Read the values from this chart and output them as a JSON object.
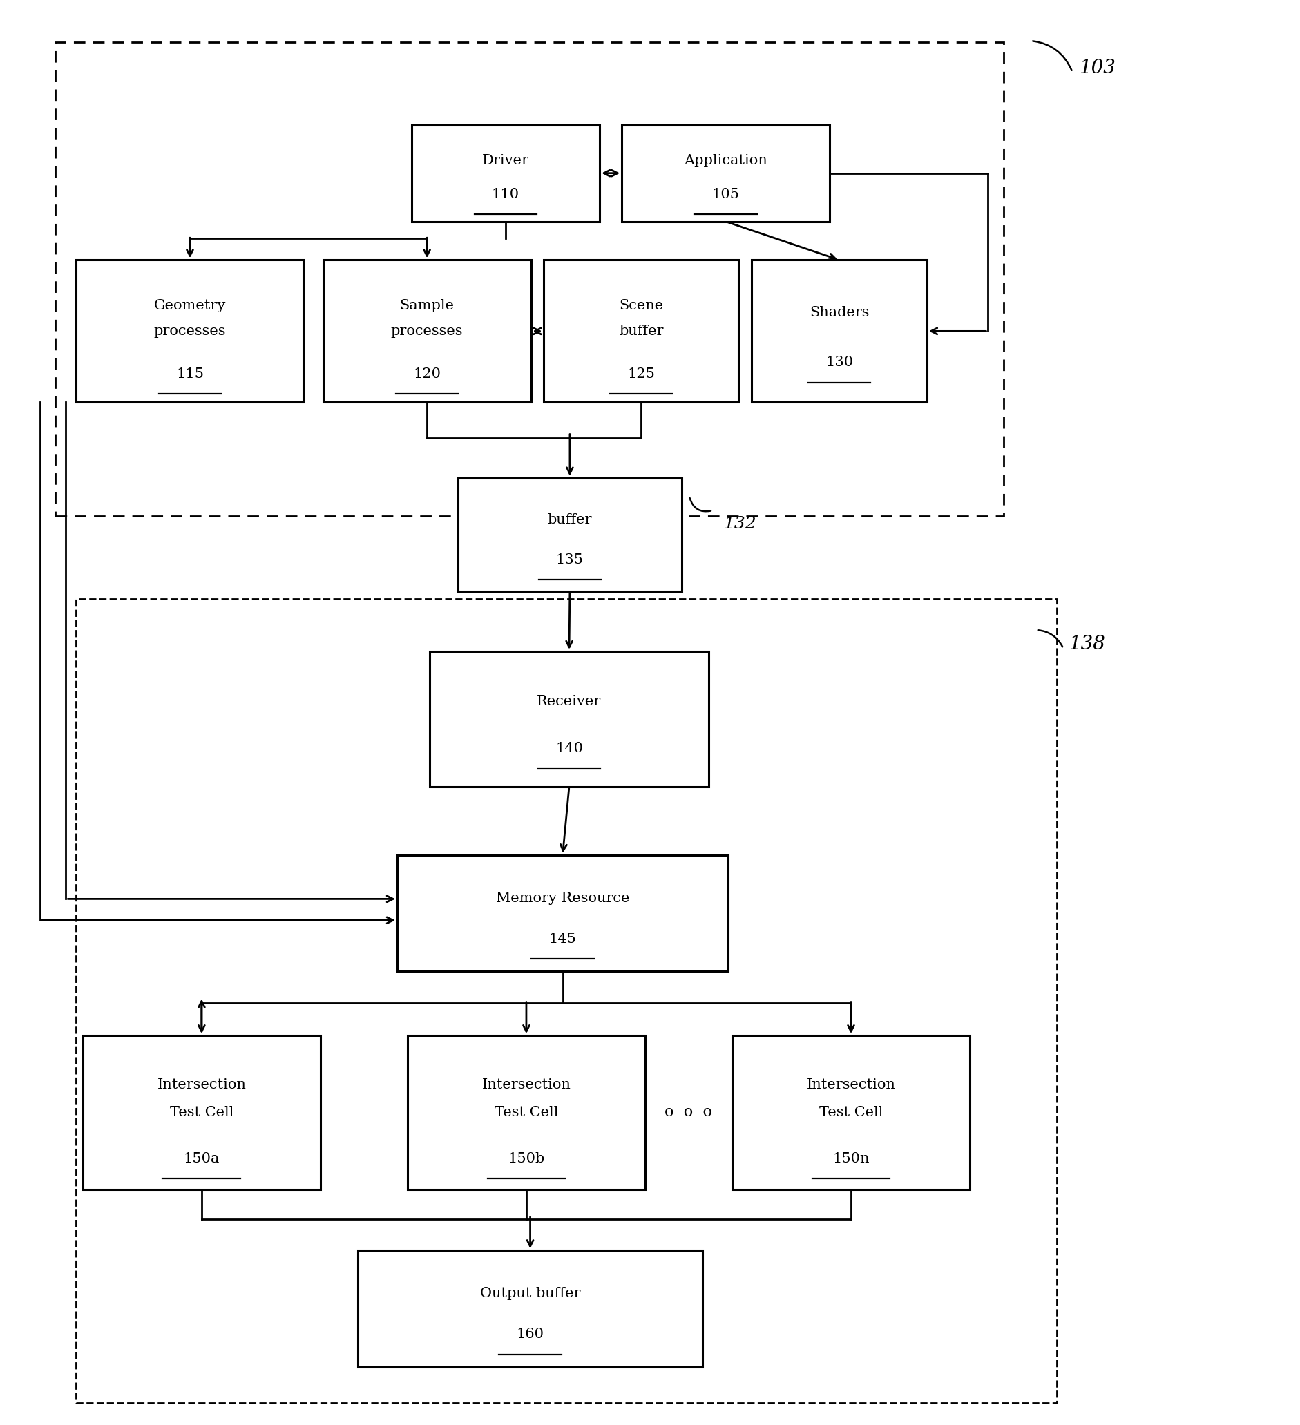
{
  "bg_color": "#ffffff",
  "fig_width": 18.83,
  "fig_height": 20.63,
  "box_defs": [
    {
      "id": "driver",
      "bx": 0.316,
      "by": 0.845,
      "bw": 0.145,
      "bh": 0.068,
      "lines": [
        "Driver"
      ],
      "number": "110"
    },
    {
      "id": "application",
      "bx": 0.478,
      "by": 0.845,
      "bw": 0.16,
      "bh": 0.068,
      "lines": [
        "Application"
      ],
      "number": "105"
    },
    {
      "id": "geom",
      "bx": 0.058,
      "by": 0.718,
      "bw": 0.175,
      "bh": 0.1,
      "lines": [
        "Geometry",
        "processes"
      ],
      "number": "115"
    },
    {
      "id": "sample",
      "bx": 0.248,
      "by": 0.718,
      "bw": 0.16,
      "bh": 0.1,
      "lines": [
        "Sample",
        "processes"
      ],
      "number": "120"
    },
    {
      "id": "scene",
      "bx": 0.418,
      "by": 0.718,
      "bw": 0.15,
      "bh": 0.1,
      "lines": [
        "Scene",
        "buffer"
      ],
      "number": "125"
    },
    {
      "id": "shaders",
      "bx": 0.578,
      "by": 0.718,
      "bw": 0.135,
      "bh": 0.1,
      "lines": [
        "Shaders"
      ],
      "number": "130"
    },
    {
      "id": "buffer",
      "bx": 0.352,
      "by": 0.585,
      "bw": 0.172,
      "bh": 0.08,
      "lines": [
        "buffer"
      ],
      "number": "135"
    },
    {
      "id": "receiver",
      "bx": 0.33,
      "by": 0.448,
      "bw": 0.215,
      "bh": 0.095,
      "lines": [
        "Receiver"
      ],
      "number": "140"
    },
    {
      "id": "memres",
      "bx": 0.305,
      "by": 0.318,
      "bw": 0.255,
      "bh": 0.082,
      "lines": [
        "Memory Resource"
      ],
      "number": "145"
    },
    {
      "id": "itc_a",
      "bx": 0.063,
      "by": 0.165,
      "bw": 0.183,
      "bh": 0.108,
      "lines": [
        "Intersection",
        "Test Cell"
      ],
      "number": "150a"
    },
    {
      "id": "itc_b",
      "bx": 0.313,
      "by": 0.165,
      "bw": 0.183,
      "bh": 0.108,
      "lines": [
        "Intersection",
        "Test Cell"
      ],
      "number": "150b"
    },
    {
      "id": "itc_n",
      "bx": 0.563,
      "by": 0.165,
      "bw": 0.183,
      "bh": 0.108,
      "lines": [
        "Intersection",
        "Test Cell"
      ],
      "number": "150n"
    },
    {
      "id": "outbuf",
      "bx": 0.275,
      "by": 0.04,
      "bw": 0.265,
      "bh": 0.082,
      "lines": [
        "Output buffer"
      ],
      "number": "160"
    }
  ],
  "rect_103": {
    "bx": 0.042,
    "by": 0.638,
    "bw": 0.73,
    "bh": 0.333
  },
  "rect_138": {
    "bx": 0.058,
    "by": 0.015,
    "bw": 0.755,
    "bh": 0.565
  },
  "fs_main": 15,
  "dots_text": "o  o  o"
}
